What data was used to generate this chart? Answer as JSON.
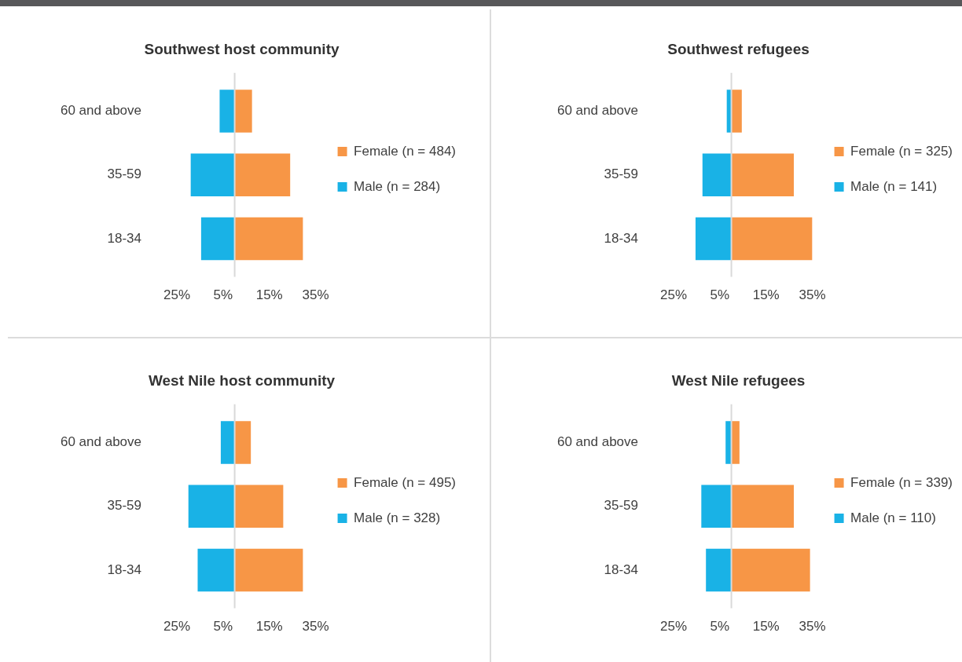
{
  "chart_data": [
    {
      "type": "bar",
      "title": "Southwest host community",
      "orientation": "horizontal",
      "stacked": true,
      "categories": [
        "60 and above",
        "35-59",
        "18-34"
      ],
      "series": [
        {
          "name": "Female (n = 484)",
          "color": "#f79646",
          "values": [
            7.5,
            24,
            29.5
          ]
        },
        {
          "name": "Male (n = 284)",
          "color": "#19b2e6",
          "values": [
            -6.5,
            -19,
            -14.5
          ]
        }
      ],
      "xlim": [
        -25,
        35
      ],
      "xticks": [
        {
          "value": -25,
          "label": "25%"
        },
        {
          "value": -5,
          "label": "5%"
        },
        {
          "value": 15,
          "label": "15%"
        },
        {
          "value": 35,
          "label": "35%"
        }
      ],
      "ref_lines": [
        {
          "axis": "x",
          "value": 0,
          "color": "#d9d9d9"
        }
      ],
      "grid": false,
      "legend": "right"
    },
    {
      "type": "bar",
      "title": "Southwest refugees",
      "orientation": "horizontal",
      "stacked": true,
      "categories": [
        "60 and above",
        "35-59",
        "18-34"
      ],
      "series": [
        {
          "name": "Female (n = 325)",
          "color": "#f79646",
          "values": [
            4.5,
            27,
            35
          ]
        },
        {
          "name": "Male (n = 141)",
          "color": "#19b2e6",
          "values": [
            -2,
            -12.5,
            -15.5
          ]
        }
      ],
      "xlim": [
        -25,
        35
      ],
      "xticks": [
        {
          "value": -25,
          "label": "25%"
        },
        {
          "value": -5,
          "label": "5%"
        },
        {
          "value": 15,
          "label": "15%"
        },
        {
          "value": 35,
          "label": "35%"
        }
      ],
      "ref_lines": [
        {
          "axis": "x",
          "value": 0,
          "color": "#d9d9d9"
        }
      ],
      "grid": false,
      "legend": "right"
    },
    {
      "type": "bar",
      "title": "West Nile host community",
      "orientation": "horizontal",
      "stacked": true,
      "categories": [
        "60 and above",
        "35-59",
        "18-34"
      ],
      "series": [
        {
          "name": "Female (n = 495)",
          "color": "#f79646",
          "values": [
            7,
            21,
            29.5
          ]
        },
        {
          "name": "Male (n = 328)",
          "color": "#19b2e6",
          "values": [
            -6,
            -20,
            -16
          ]
        }
      ],
      "xlim": [
        -25,
        35
      ],
      "xticks": [
        {
          "value": -25,
          "label": "25%"
        },
        {
          "value": -5,
          "label": "5%"
        },
        {
          "value": 15,
          "label": "15%"
        },
        {
          "value": 35,
          "label": "35%"
        }
      ],
      "ref_lines": [
        {
          "axis": "x",
          "value": 0,
          "color": "#d9d9d9"
        }
      ],
      "grid": false,
      "legend": "right"
    },
    {
      "type": "bar",
      "title": "West Nile refugees",
      "orientation": "horizontal",
      "stacked": true,
      "categories": [
        "60 and above",
        "35-59",
        "18-34"
      ],
      "series": [
        {
          "name": "Female (n = 339)",
          "color": "#f79646",
          "values": [
            3.5,
            27,
            34
          ]
        },
        {
          "name": "Male (n = 110)",
          "color": "#19b2e6",
          "values": [
            -2.5,
            -13,
            -11
          ]
        }
      ],
      "xlim": [
        -25,
        35
      ],
      "xticks": [
        {
          "value": -25,
          "label": "25%"
        },
        {
          "value": -5,
          "label": "5%"
        },
        {
          "value": 15,
          "label": "15%"
        },
        {
          "value": 35,
          "label": "35%"
        }
      ],
      "ref_lines": [
        {
          "axis": "x",
          "value": 0,
          "color": "#d9d9d9"
        }
      ],
      "grid": false,
      "legend": "right"
    }
  ]
}
